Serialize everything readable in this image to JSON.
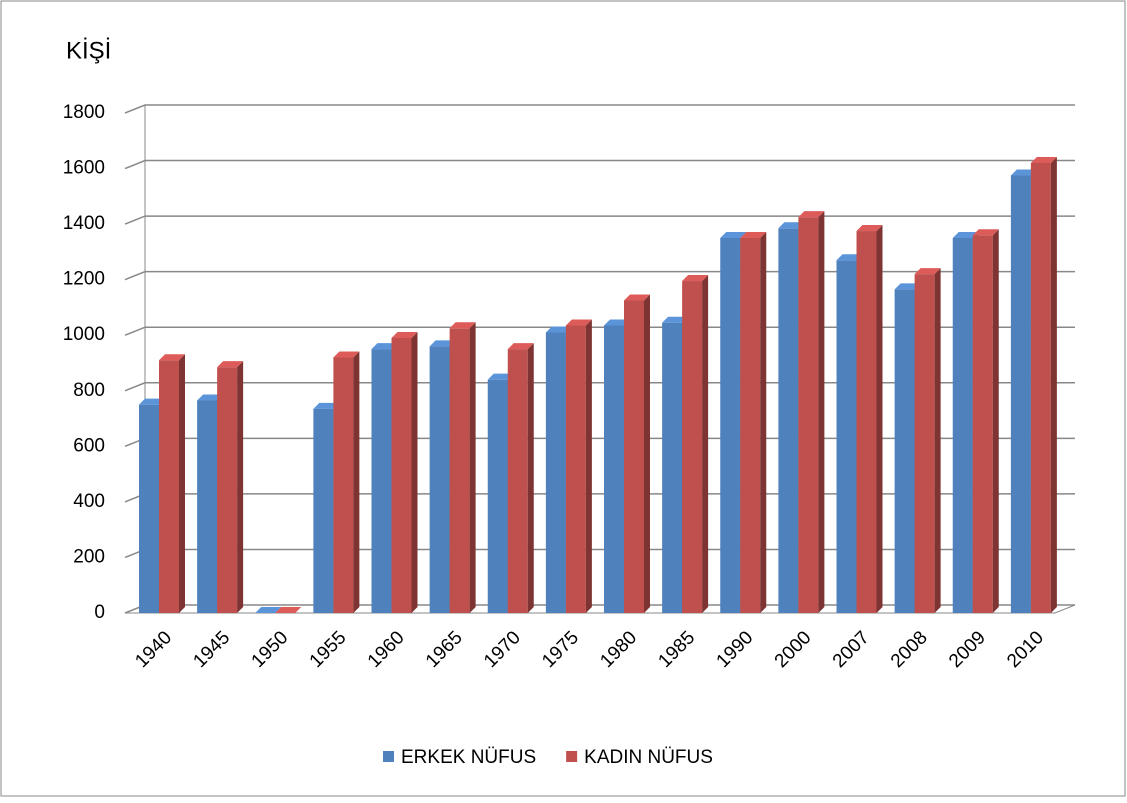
{
  "chart_data": {
    "type": "bar",
    "ylabel": "KİŞİ",
    "categories": [
      "1940",
      "1945",
      "1950",
      "1955",
      "1960",
      "1965",
      "1970",
      "1975",
      "1980",
      "1985",
      "1990",
      "2000",
      "2007",
      "2008",
      "2009",
      "2010"
    ],
    "series": [
      {
        "name": "ERKEK NÜFUS",
        "color": "#4f81bd",
        "values": [
          750,
          765,
          0,
          735,
          950,
          960,
          840,
          1010,
          1035,
          1045,
          1350,
          1385,
          1270,
          1165,
          1350,
          1575
        ]
      },
      {
        "name": "KADIN NÜFUS",
        "color": "#c0504d",
        "values": [
          910,
          885,
          0,
          920,
          990,
          1025,
          950,
          1035,
          1125,
          1195,
          1350,
          1425,
          1375,
          1220,
          1360,
          1620
        ]
      }
    ],
    "ylim": [
      0,
      1800
    ],
    "yticks": [
      0,
      200,
      400,
      600,
      800,
      1000,
      1200,
      1400,
      1600,
      1800
    ],
    "grid": true,
    "legend": "bottom"
  }
}
